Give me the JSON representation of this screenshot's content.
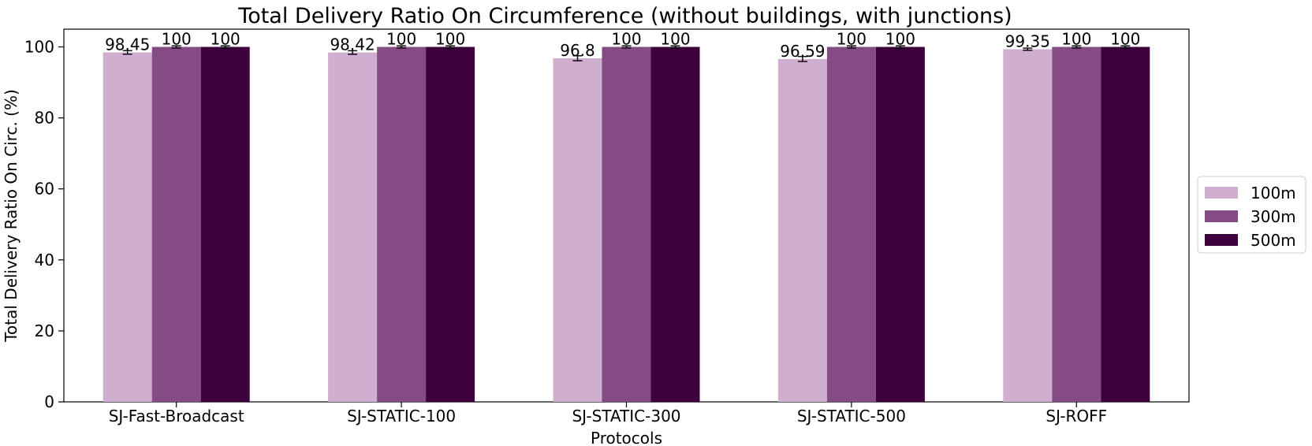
{
  "chart_data": {
    "type": "bar",
    "title": "Total Delivery Ratio On Circumference (without buildings, with junctions)",
    "xlabel": "Protocols",
    "ylabel": "Total Delivery Ratio On Circ. (%)",
    "ylim": [
      0,
      105
    ],
    "yticks": [
      0,
      20,
      40,
      60,
      80,
      100
    ],
    "categories": [
      "SJ-Fast-Broadcast",
      "SJ-STATIC-100",
      "SJ-STATIC-300",
      "SJ-STATIC-500",
      "SJ-ROFF"
    ],
    "series": [
      {
        "name": "100m",
        "color": "#d0aed0",
        "values": [
          98.45,
          98.42,
          96.8,
          96.59,
          99.35
        ],
        "labels": [
          "98.45",
          "98.42",
          "96.8",
          "96.59",
          "99.35"
        ],
        "errors": [
          0.5,
          0.5,
          0.7,
          0.7,
          0.3
        ]
      },
      {
        "name": "300m",
        "color": "#854b85",
        "values": [
          100,
          100,
          100,
          100,
          100
        ],
        "labels": [
          "100",
          "100",
          "100",
          "100",
          "100"
        ],
        "errors": [
          0.3,
          0.3,
          0.3,
          0.3,
          0.3
        ]
      },
      {
        "name": "500m",
        "color": "#3d003d",
        "values": [
          100,
          100,
          100,
          100,
          100
        ],
        "labels": [
          "100",
          "100",
          "100",
          "100",
          "100"
        ],
        "errors": [
          0.3,
          0.3,
          0.3,
          0.3,
          0.3
        ]
      }
    ],
    "legend_position": "right",
    "grid": false
  }
}
